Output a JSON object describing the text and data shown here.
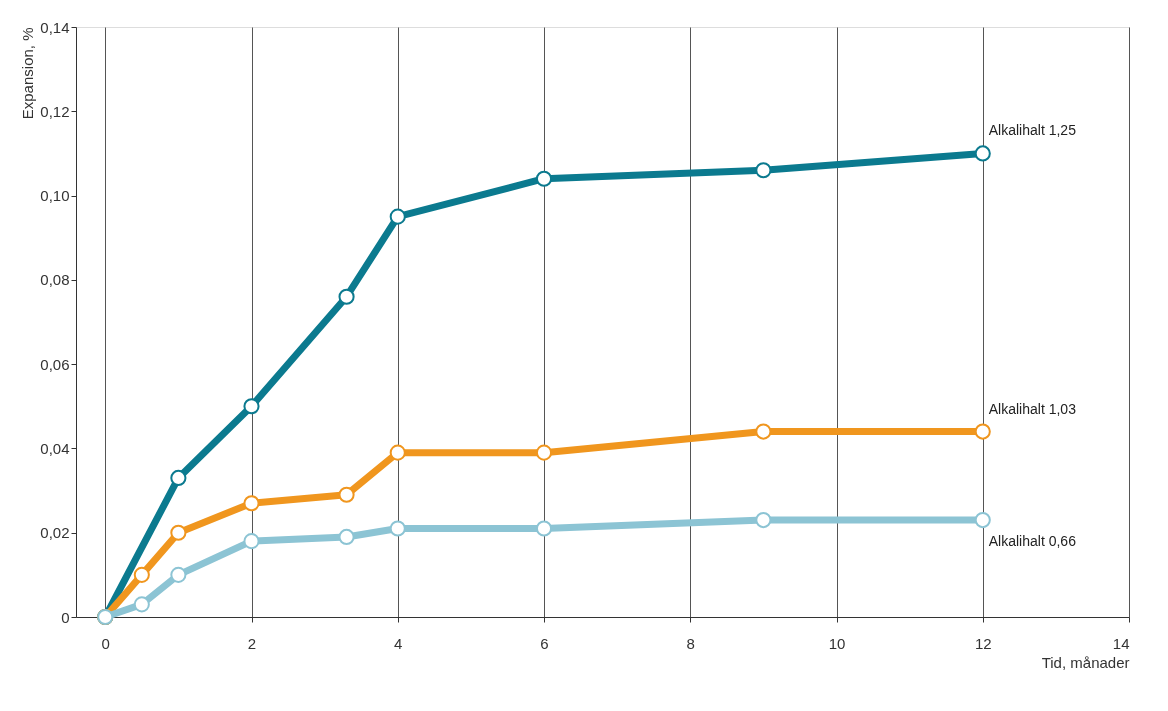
{
  "chart_data": {
    "type": "line",
    "xlabel": "Tid, månader",
    "ylabel": "Expansion, %",
    "xlim": [
      -0.4,
      14
    ],
    "ylim": [
      0,
      0.14
    ],
    "xticks": [
      0,
      2,
      4,
      6,
      8,
      10,
      12,
      14
    ],
    "yticks": [
      {
        "value": 0,
        "label": "0"
      },
      {
        "value": 0.02,
        "label": "0,02"
      },
      {
        "value": 0.04,
        "label": "0,04"
      },
      {
        "value": 0.06,
        "label": "0,06"
      },
      {
        "value": 0.08,
        "label": "0,08"
      },
      {
        "value": 0.1,
        "label": "0,10"
      },
      {
        "value": 0.12,
        "label": "0,12"
      },
      {
        "value": 0.14,
        "label": "0,14"
      }
    ],
    "grid": "x",
    "marker": "circle",
    "line_style": "solid",
    "legend": false,
    "series": [
      {
        "name": "Alkalihalt 1,25",
        "color": "#0b7a8f",
        "x": [
          0,
          1,
          2,
          3.3,
          4,
          6,
          9,
          12
        ],
        "values": [
          0,
          0.033,
          0.05,
          0.076,
          0.095,
          0.104,
          0.106,
          0.11
        ]
      },
      {
        "name": "Alkalihalt 1,03",
        "color": "#f0961e",
        "x": [
          0,
          0.5,
          1,
          2,
          3.3,
          4,
          6,
          9,
          12
        ],
        "values": [
          0,
          0.01,
          0.02,
          0.027,
          0.029,
          0.039,
          0.039,
          0.044,
          0.044
        ]
      },
      {
        "name": "Alkalihalt 0,66",
        "color": "#8cc4d4",
        "x": [
          0,
          0.5,
          1,
          2,
          3.3,
          4,
          6,
          9,
          12
        ],
        "values": [
          0,
          0.003,
          0.01,
          0.018,
          0.019,
          0.021,
          0.021,
          0.023,
          0.023
        ]
      }
    ]
  }
}
